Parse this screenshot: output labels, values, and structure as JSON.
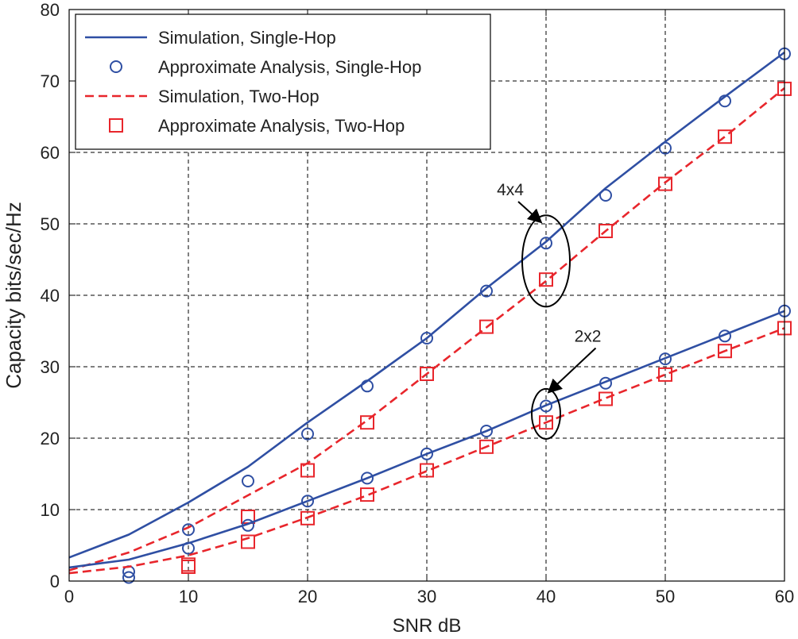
{
  "chart_data": {
    "type": "line",
    "title": "",
    "xlabel": "SNR dB",
    "ylabel": "Capacity bits/sec/Hz",
    "xlim": [
      0,
      60
    ],
    "ylim": [
      0,
      80
    ],
    "xticks": [
      0,
      10,
      20,
      30,
      40,
      50,
      60
    ],
    "yticks": [
      0,
      10,
      20,
      30,
      40,
      50,
      60,
      70,
      80
    ],
    "grid": true,
    "legend_position": "top-left",
    "colors": {
      "single_hop": "#2f4fa3",
      "two_hop": "#e8262c",
      "grid": "#000000"
    },
    "series": [
      {
        "name": "Simulation, Single-Hop",
        "group": "4x4",
        "style": "solid",
        "color": "#2f4fa3",
        "x": [
          0,
          5,
          10,
          15,
          20,
          25,
          30,
          35,
          40,
          45,
          50,
          55,
          60
        ],
        "y": [
          3.3,
          6.5,
          11,
          16,
          22.2,
          28,
          34,
          41,
          47.5,
          55,
          61.5,
          67.8,
          74
        ]
      },
      {
        "name": "Approximate Analysis, Single-Hop",
        "group": "4x4",
        "style": "circle",
        "color": "#2f4fa3",
        "x": [
          5,
          10,
          15,
          20,
          25,
          30,
          35,
          40,
          45,
          50,
          55,
          60
        ],
        "y": [
          0.5,
          7.2,
          14,
          20.6,
          27.3,
          34,
          40.6,
          47.3,
          54,
          60.6,
          67.2,
          73.8
        ]
      },
      {
        "name": "Simulation, Two-Hop",
        "group": "4x4",
        "style": "dashed",
        "color": "#e8262c",
        "x": [
          0,
          5,
          10,
          15,
          20,
          25,
          30,
          35,
          40,
          45,
          50,
          55,
          60
        ],
        "y": [
          1.5,
          4,
          7.5,
          12,
          16.5,
          22.5,
          29,
          35.5,
          42,
          49,
          55.8,
          62.2,
          69
        ]
      },
      {
        "name": "Approximate Analysis, Two-Hop",
        "group": "4x4",
        "style": "square",
        "color": "#e8262c",
        "x": [
          10,
          15,
          20,
          25,
          30,
          35,
          40,
          45,
          50,
          55,
          60
        ],
        "y": [
          2.3,
          9,
          15.5,
          22.2,
          29,
          35.6,
          42.2,
          49,
          55.6,
          62.2,
          68.9
        ]
      },
      {
        "name": "Simulation, Single-Hop",
        "group": "2x2",
        "style": "solid",
        "color": "#2f4fa3",
        "x": [
          0,
          5,
          10,
          15,
          20,
          25,
          30,
          35,
          40,
          45,
          50,
          55,
          60
        ],
        "y": [
          1.9,
          3,
          5.3,
          8,
          11.2,
          14.4,
          17.8,
          21,
          24.6,
          27.9,
          31.2,
          34.5,
          37.8
        ]
      },
      {
        "name": "Approximate Analysis, Single-Hop",
        "group": "2x2",
        "style": "circle",
        "color": "#2f4fa3",
        "x": [
          5,
          10,
          15,
          20,
          25,
          30,
          35,
          40,
          45,
          50,
          55,
          60
        ],
        "y": [
          1.3,
          4.6,
          7.8,
          11.2,
          14.4,
          17.8,
          21,
          24.5,
          27.7,
          31.1,
          34.3,
          37.8
        ]
      },
      {
        "name": "Simulation, Two-Hop",
        "group": "2x2",
        "style": "dashed",
        "color": "#e8262c",
        "x": [
          0,
          5,
          10,
          15,
          20,
          25,
          30,
          35,
          40,
          45,
          50,
          55,
          60
        ],
        "y": [
          1.1,
          2,
          3.6,
          6,
          8.9,
          12,
          15.4,
          18.8,
          22.2,
          25.6,
          28.9,
          32.2,
          35.4
        ]
      },
      {
        "name": "Approximate Analysis, Two-Hop",
        "group": "2x2",
        "style": "square",
        "color": "#e8262c",
        "x": [
          10,
          15,
          20,
          25,
          30,
          35,
          40,
          45,
          50,
          55,
          60
        ],
        "y": [
          2,
          5.5,
          8.8,
          12.1,
          15.5,
          18.8,
          22.2,
          25.5,
          28.9,
          32.2,
          35.4
        ]
      }
    ],
    "legend": [
      {
        "label": "Simulation, Single-Hop",
        "style": "solid",
        "color": "#2f4fa3"
      },
      {
        "label": "Approximate Analysis, Single-Hop",
        "style": "circle",
        "color": "#2f4fa3"
      },
      {
        "label": "Simulation, Two-Hop",
        "style": "dashed",
        "color": "#e8262c"
      },
      {
        "label": "Approximate Analysis, Two-Hop",
        "style": "square",
        "color": "#e8262c"
      }
    ],
    "annotations": [
      {
        "text": "4x4",
        "ellipse_center": [
          40,
          44.8
        ],
        "ellipse_radius": [
          2,
          6.4
        ],
        "label_at": [
          37,
          54
        ],
        "arrow_to": [
          39.6,
          50.2
        ]
      },
      {
        "text": "2x2",
        "ellipse_center": [
          40,
          23.4
        ],
        "ellipse_radius": [
          1.2,
          3.5
        ],
        "label_at": [
          43.5,
          33.5
        ],
        "arrow_to": [
          40.2,
          26.4
        ]
      }
    ]
  }
}
